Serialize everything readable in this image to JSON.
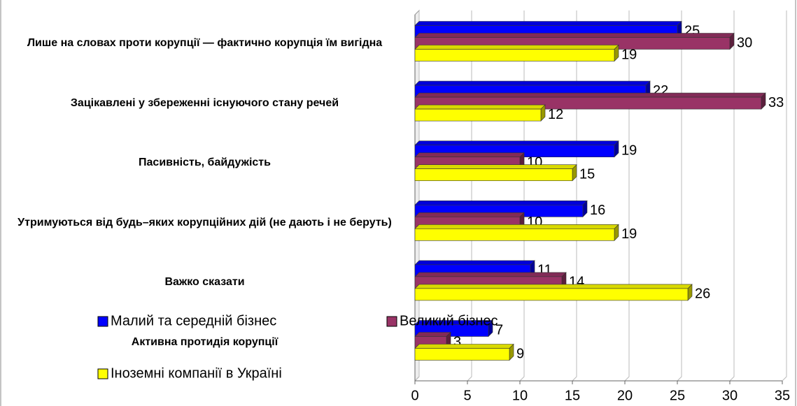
{
  "chart_data": {
    "type": "bar",
    "orientation": "horizontal",
    "categories": [
      "Лише на словах проти корупції — фактично корупція їм вигідна",
      "Зацікавлені у збереженні існуючого стану речей",
      "Пасивність, байдужість",
      "Утримуються від будь–яких корупційних дій (не дають і не беруть)",
      "Важко сказати",
      "Активна протидія корупції"
    ],
    "series": [
      {
        "name": "Малий та середній бізнес",
        "color": "#0000ff",
        "values": [
          25,
          22,
          19,
          16,
          11,
          7
        ]
      },
      {
        "name": "Великий бізнес",
        "color": "#993366",
        "values": [
          30,
          33,
          10,
          10,
          14,
          3
        ]
      },
      {
        "name": "Іноземні компанії в Україні",
        "color": "#ffff00",
        "values": [
          19,
          12,
          15,
          19,
          26,
          9
        ]
      }
    ],
    "xlim": [
      0,
      35
    ],
    "xticks": [
      0,
      5,
      10,
      15,
      20,
      25,
      30,
      35
    ],
    "grid": true
  }
}
